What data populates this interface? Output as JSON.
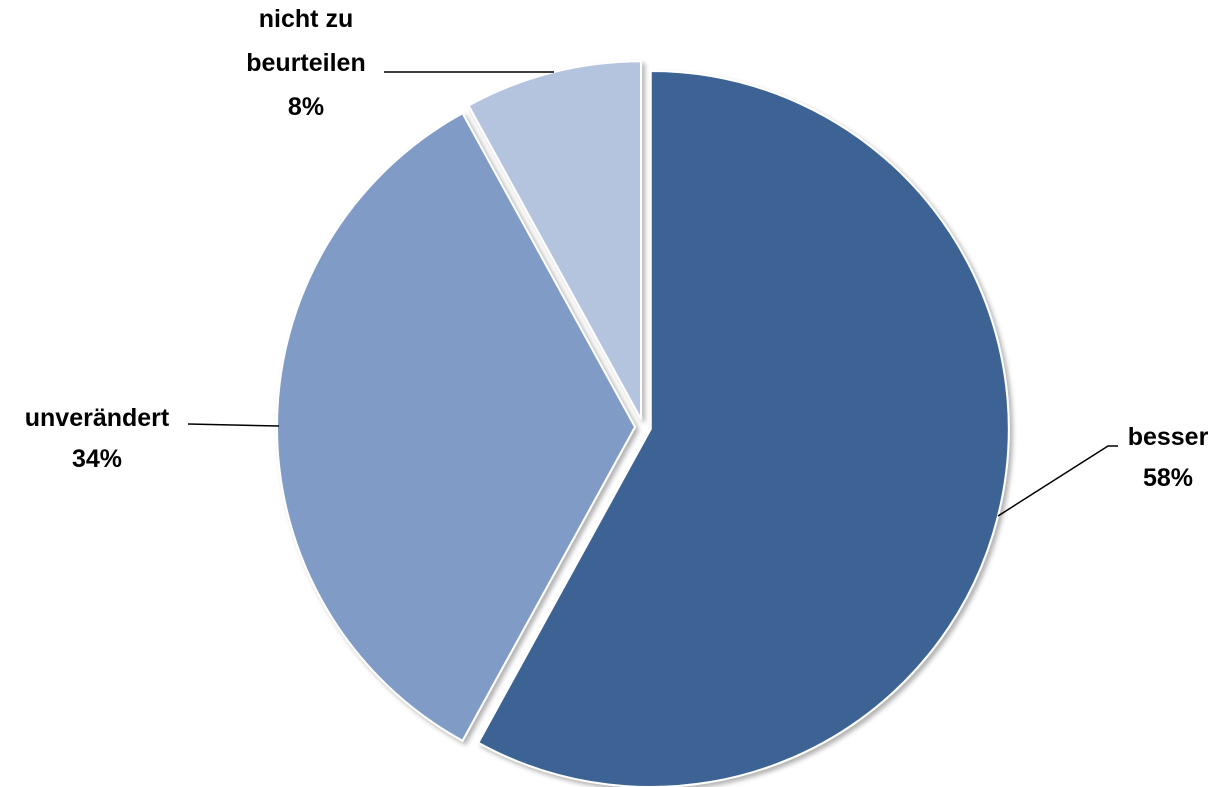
{
  "chart_data": {
    "type": "pie",
    "title": "",
    "slices": [
      {
        "label": "besser",
        "value": 58,
        "value_label": "58%",
        "color": "#3e6495"
      },
      {
        "label": "unverändert",
        "value": 34,
        "value_label": "34%",
        "color": "#7f9bc6"
      },
      {
        "label": "nicht zu beurteilen",
        "label_lines": [
          "nicht zu",
          "beurteilen"
        ],
        "value": 8,
        "value_label": "8%",
        "color": "#b4c3de"
      }
    ],
    "start_angle": "12 o'clock",
    "direction": "clockwise",
    "slices_exploded": true,
    "legend": "none",
    "data_labels": "outside with leader lines"
  }
}
